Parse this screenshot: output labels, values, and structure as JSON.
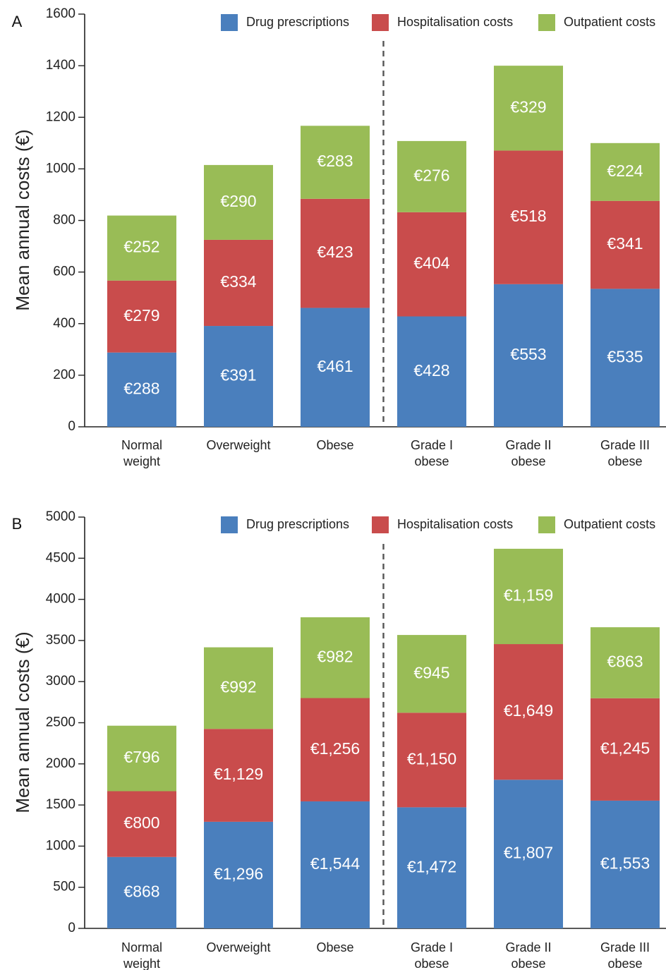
{
  "colors": {
    "drug": "#4a7fbd",
    "hospital": "#c94c4c",
    "outpatient": "#99bc56"
  },
  "chart_data": [
    {
      "type": "bar",
      "stacked": true,
      "panel_label": "A",
      "ylabel": "Mean annual costs (€)",
      "ylim": [
        0,
        1600
      ],
      "yticks": [
        "0",
        "200",
        "400",
        "600",
        "800",
        "1000",
        "1200",
        "1400",
        "1600"
      ],
      "ytick_values": [
        0,
        200,
        400,
        600,
        800,
        1000,
        1200,
        1400,
        1600
      ],
      "categories": [
        [
          "Normal",
          "weight"
        ],
        [
          "Overweight"
        ],
        [
          "Obese"
        ],
        [
          "Grade I",
          "obese"
        ],
        [
          "Grade II",
          "obese"
        ],
        [
          "Grade III",
          "obese"
        ]
      ],
      "divider_after_category": 3,
      "legend": [
        "Drug prescriptions",
        "Hospitalisation costs",
        "Outpatient costs"
      ],
      "legend_position": "top-right",
      "series": [
        {
          "name": "Drug prescriptions",
          "color_key": "drug",
          "values": [
            288,
            391,
            461,
            428,
            553,
            535
          ],
          "labels": [
            "€288",
            "€391",
            "€461",
            "€428",
            "€553",
            "€535"
          ]
        },
        {
          "name": "Hospitalisation costs",
          "color_key": "hospital",
          "values": [
            279,
            334,
            423,
            404,
            518,
            341
          ],
          "labels": [
            "€279",
            "€334",
            "€423",
            "€404",
            "€518",
            "€341"
          ]
        },
        {
          "name": "Outpatient costs",
          "color_key": "outpatient",
          "values": [
            252,
            290,
            283,
            276,
            329,
            224
          ],
          "labels": [
            "€252",
            "€290",
            "€283",
            "€276",
            "€329",
            "€224"
          ]
        }
      ]
    },
    {
      "type": "bar",
      "stacked": true,
      "panel_label": "B",
      "ylabel": "Mean annual costs (€)",
      "ylim": [
        0,
        5000
      ],
      "yticks": [
        "0",
        "500",
        "1000",
        "1500",
        "2000",
        "2500",
        "3000",
        "3500",
        "4000",
        "4500",
        "5000"
      ],
      "ytick_values": [
        0,
        500,
        1000,
        1500,
        2000,
        2500,
        3000,
        3500,
        4000,
        4500,
        5000
      ],
      "categories": [
        [
          "Normal",
          "weight"
        ],
        [
          "Overweight"
        ],
        [
          "Obese"
        ],
        [
          "Grade I",
          "obese"
        ],
        [
          "Grade II",
          "obese"
        ],
        [
          "Grade III",
          "obese"
        ]
      ],
      "divider_after_category": 3,
      "legend": [
        "Drug prescriptions",
        "Hospitalisation costs",
        "Outpatient costs"
      ],
      "legend_position": "top-right",
      "series": [
        {
          "name": "Drug prescriptions",
          "color_key": "drug",
          "values": [
            868,
            1296,
            1544,
            1472,
            1807,
            1553
          ],
          "labels": [
            "€868",
            "€1,296",
            "€1,544",
            "€1,472",
            "€1,807",
            "€1,553"
          ]
        },
        {
          "name": "Hospitalisation costs",
          "color_key": "hospital",
          "values": [
            800,
            1129,
            1256,
            1150,
            1649,
            1245
          ],
          "labels": [
            "€800",
            "€1,129",
            "€1,256",
            "€1,150",
            "€1,649",
            "€1,245"
          ]
        },
        {
          "name": "Outpatient costs",
          "color_key": "outpatient",
          "values": [
            796,
            992,
            982,
            945,
            1159,
            863
          ],
          "labels": [
            "€796",
            "€992",
            "€982",
            "€945",
            "€1,159",
            "€863"
          ]
        }
      ]
    }
  ]
}
